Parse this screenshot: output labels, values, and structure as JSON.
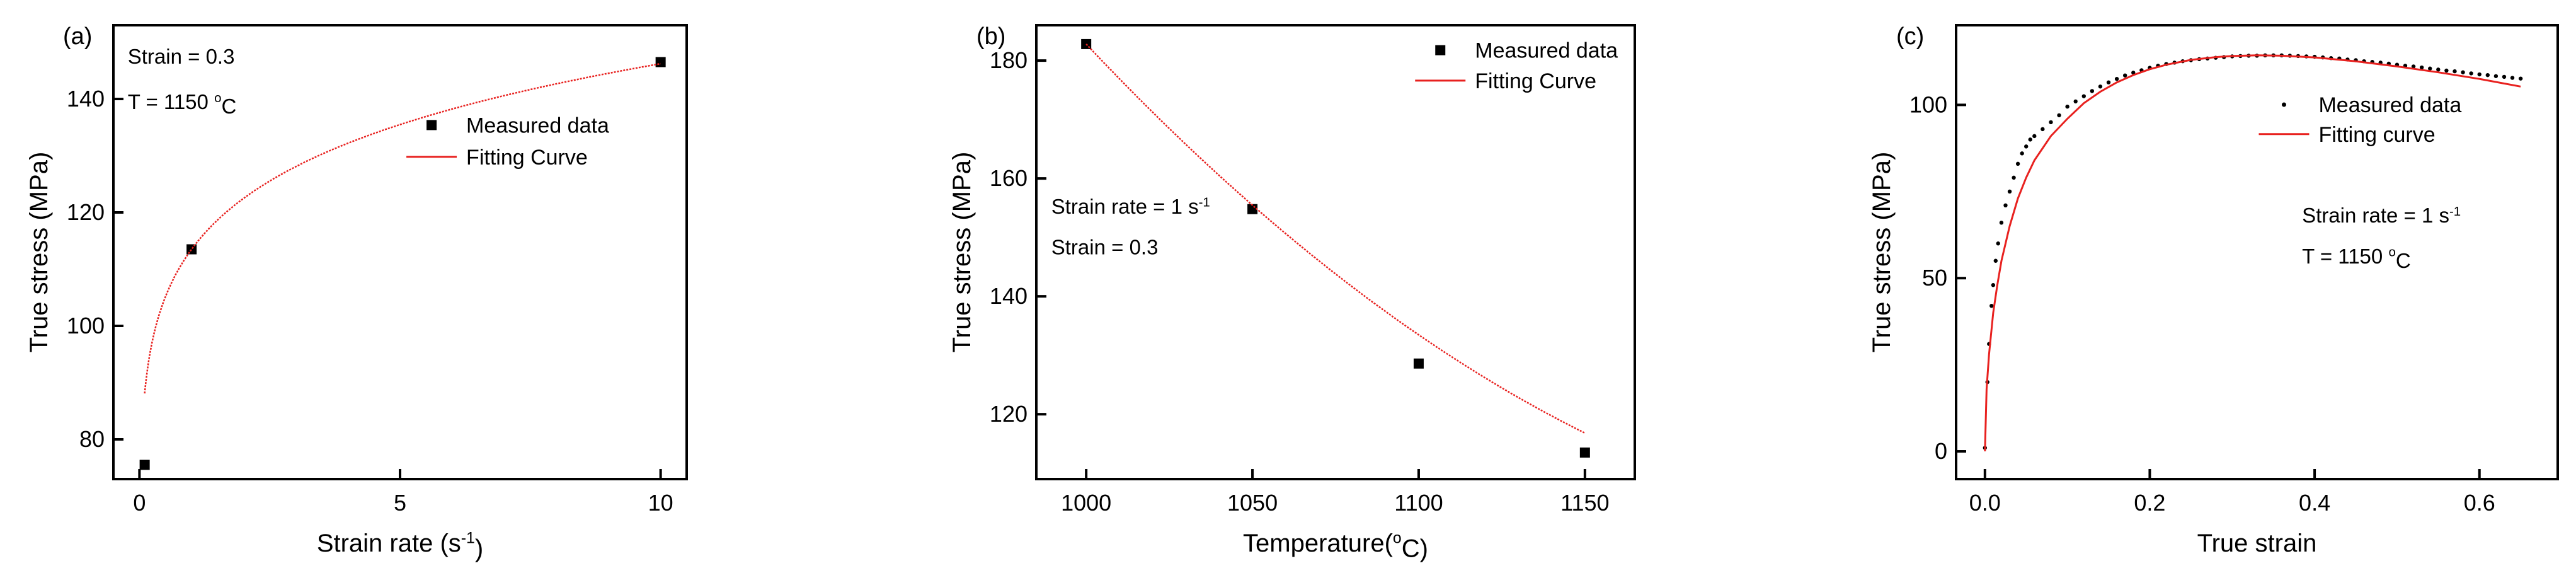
{
  "chart_data": [
    {
      "type": "scatter",
      "panel_label": "(a)",
      "xlabel": "Strain rate (s",
      "xlabel_sup": "-1",
      "xlabel_tail": ")",
      "ylabel": "True stress (MPa)",
      "xlim": [
        -0.5,
        10.5
      ],
      "ylim": [
        73,
        153
      ],
      "xticks": [
        0,
        5,
        10
      ],
      "yticks": [
        80,
        100,
        120,
        140
      ],
      "annotations": [
        {
          "text": "Strain = 0.3"
        },
        {
          "text": "T = 1150 ",
          "sup": "o",
          "tail": "C"
        }
      ],
      "legend": {
        "position": "top-right",
        "entries": [
          "Measured data",
          "Fitting Curve"
        ]
      },
      "series": [
        {
          "name": "Measured data",
          "kind": "markers",
          "color": "#000000",
          "x": [
            0.1,
            1,
            10
          ],
          "y": [
            75.5,
            113.5,
            146.5
          ]
        },
        {
          "name": "Fitting Curve",
          "kind": "line",
          "color": "#e8211f",
          "model": "power",
          "a": 113.5,
          "b": 0.11,
          "x_range": [
            0.1,
            10
          ]
        }
      ]
    },
    {
      "type": "scatter",
      "panel_label": "(b)",
      "xlabel": "Temperature(",
      "xlabel_sup": "o",
      "xlabel_tail": "C)",
      "ylabel": "True stress (MPa)",
      "xlim": [
        985,
        1165
      ],
      "ylim": [
        109,
        186
      ],
      "xticks": [
        1000,
        1050,
        1100,
        1150
      ],
      "yticks": [
        120,
        140,
        160,
        180
      ],
      "annotations": [
        {
          "text": "Strain rate = 1 s",
          "sup": "-1",
          "tail": ""
        },
        {
          "text": "Strain = 0.3"
        }
      ],
      "legend": {
        "position": "top-right",
        "entries": [
          "Measured data",
          "Fitting Curve"
        ]
      },
      "series": [
        {
          "name": "Measured data",
          "kind": "markers",
          "color": "#000000",
          "x": [
            1000,
            1050,
            1100,
            1150
          ],
          "y": [
            182.8,
            154.8,
            128.6,
            113.5
          ]
        },
        {
          "name": "Fitting Curve",
          "kind": "line",
          "color": "#e8211f",
          "model": "poly",
          "coef": [
            182.8,
            -0.6,
            0.001067
          ],
          "x0": 1000,
          "x_range": [
            1000,
            1150
          ]
        }
      ]
    },
    {
      "type": "scatter",
      "panel_label": "(c)",
      "xlabel": "True strain",
      "ylabel": "True stress (MPa)",
      "xlim": [
        -0.035,
        0.695
      ],
      "ylim": [
        -8,
        123
      ],
      "xticks": [
        0.0,
        0.2,
        0.4,
        0.6
      ],
      "xtick_labels": [
        "0.0",
        "0.2",
        "0.4",
        "0.6"
      ],
      "yticks": [
        0,
        50,
        100
      ],
      "annotations": [
        {
          "text": "Strain rate = 1 s",
          "sup": "-1",
          "tail": ""
        },
        {
          "text": "T = 1150 ",
          "sup": "o",
          "tail": "C"
        }
      ],
      "legend": {
        "position": "top-right",
        "entries": [
          "Measured data",
          "Fitting curve"
        ]
      },
      "series": [
        {
          "name": "Measured data",
          "kind": "dots",
          "color": "#000000",
          "x": [
            0.0,
            0.003,
            0.005,
            0.008,
            0.01,
            0.013,
            0.016,
            0.02,
            0.025,
            0.03,
            0.035,
            0.04,
            0.045,
            0.05,
            0.055,
            0.06,
            0.07,
            0.08,
            0.09,
            0.1,
            0.11,
            0.12,
            0.13,
            0.14,
            0.15,
            0.16,
            0.17,
            0.18,
            0.19,
            0.2,
            0.21,
            0.22,
            0.23,
            0.24,
            0.25,
            0.26,
            0.27,
            0.28,
            0.29,
            0.3,
            0.31,
            0.32,
            0.33,
            0.34,
            0.35,
            0.36,
            0.37,
            0.38,
            0.39,
            0.4,
            0.41,
            0.42,
            0.43,
            0.44,
            0.45,
            0.46,
            0.47,
            0.48,
            0.49,
            0.5,
            0.51,
            0.52,
            0.53,
            0.54,
            0.55,
            0.56,
            0.57,
            0.58,
            0.59,
            0.6,
            0.61,
            0.62,
            0.63,
            0.64,
            0.65
          ],
          "y": [
            1,
            20,
            31,
            42,
            48,
            55,
            60,
            66,
            71,
            75,
            79,
            83,
            86,
            88,
            90,
            91,
            93,
            95,
            97,
            99.5,
            101,
            102.5,
            104,
            105.3,
            106.5,
            107.5,
            108.5,
            109.3,
            110,
            110.7,
            111.3,
            111.8,
            112.2,
            112.6,
            112.9,
            113.2,
            113.4,
            113.6,
            113.8,
            114,
            114.1,
            114.2,
            114.2,
            114.3,
            114.3,
            114.3,
            114.2,
            114.1,
            114,
            113.9,
            113.7,
            113.5,
            113.4,
            113.1,
            112.9,
            112.6,
            112.4,
            112.2,
            111.9,
            111.6,
            111.3,
            111.1,
            110.8,
            110.5,
            110.2,
            109.9,
            109.7,
            109.4,
            109.1,
            108.8,
            108.6,
            108.3,
            108.1,
            107.8,
            107.6
          ]
        },
        {
          "name": "Fitting curve",
          "kind": "line",
          "color": "#e8211f",
          "x": [
            0.0,
            0.002,
            0.005,
            0.01,
            0.015,
            0.02,
            0.03,
            0.04,
            0.05,
            0.06,
            0.08,
            0.1,
            0.12,
            0.14,
            0.16,
            0.18,
            0.2,
            0.22,
            0.25,
            0.28,
            0.3,
            0.33,
            0.36,
            0.4,
            0.45,
            0.5,
            0.55,
            0.6,
            0.65
          ],
          "y": [
            0,
            18,
            28,
            40,
            48,
            55,
            65,
            73,
            79,
            84,
            91,
            96,
            100.5,
            103.8,
            106.5,
            108.6,
            110.3,
            111.6,
            113,
            113.8,
            114.1,
            114.3,
            114.2,
            113.7,
            112.6,
            111.1,
            109.4,
            107.5,
            105.3
          ]
        }
      ]
    }
  ]
}
